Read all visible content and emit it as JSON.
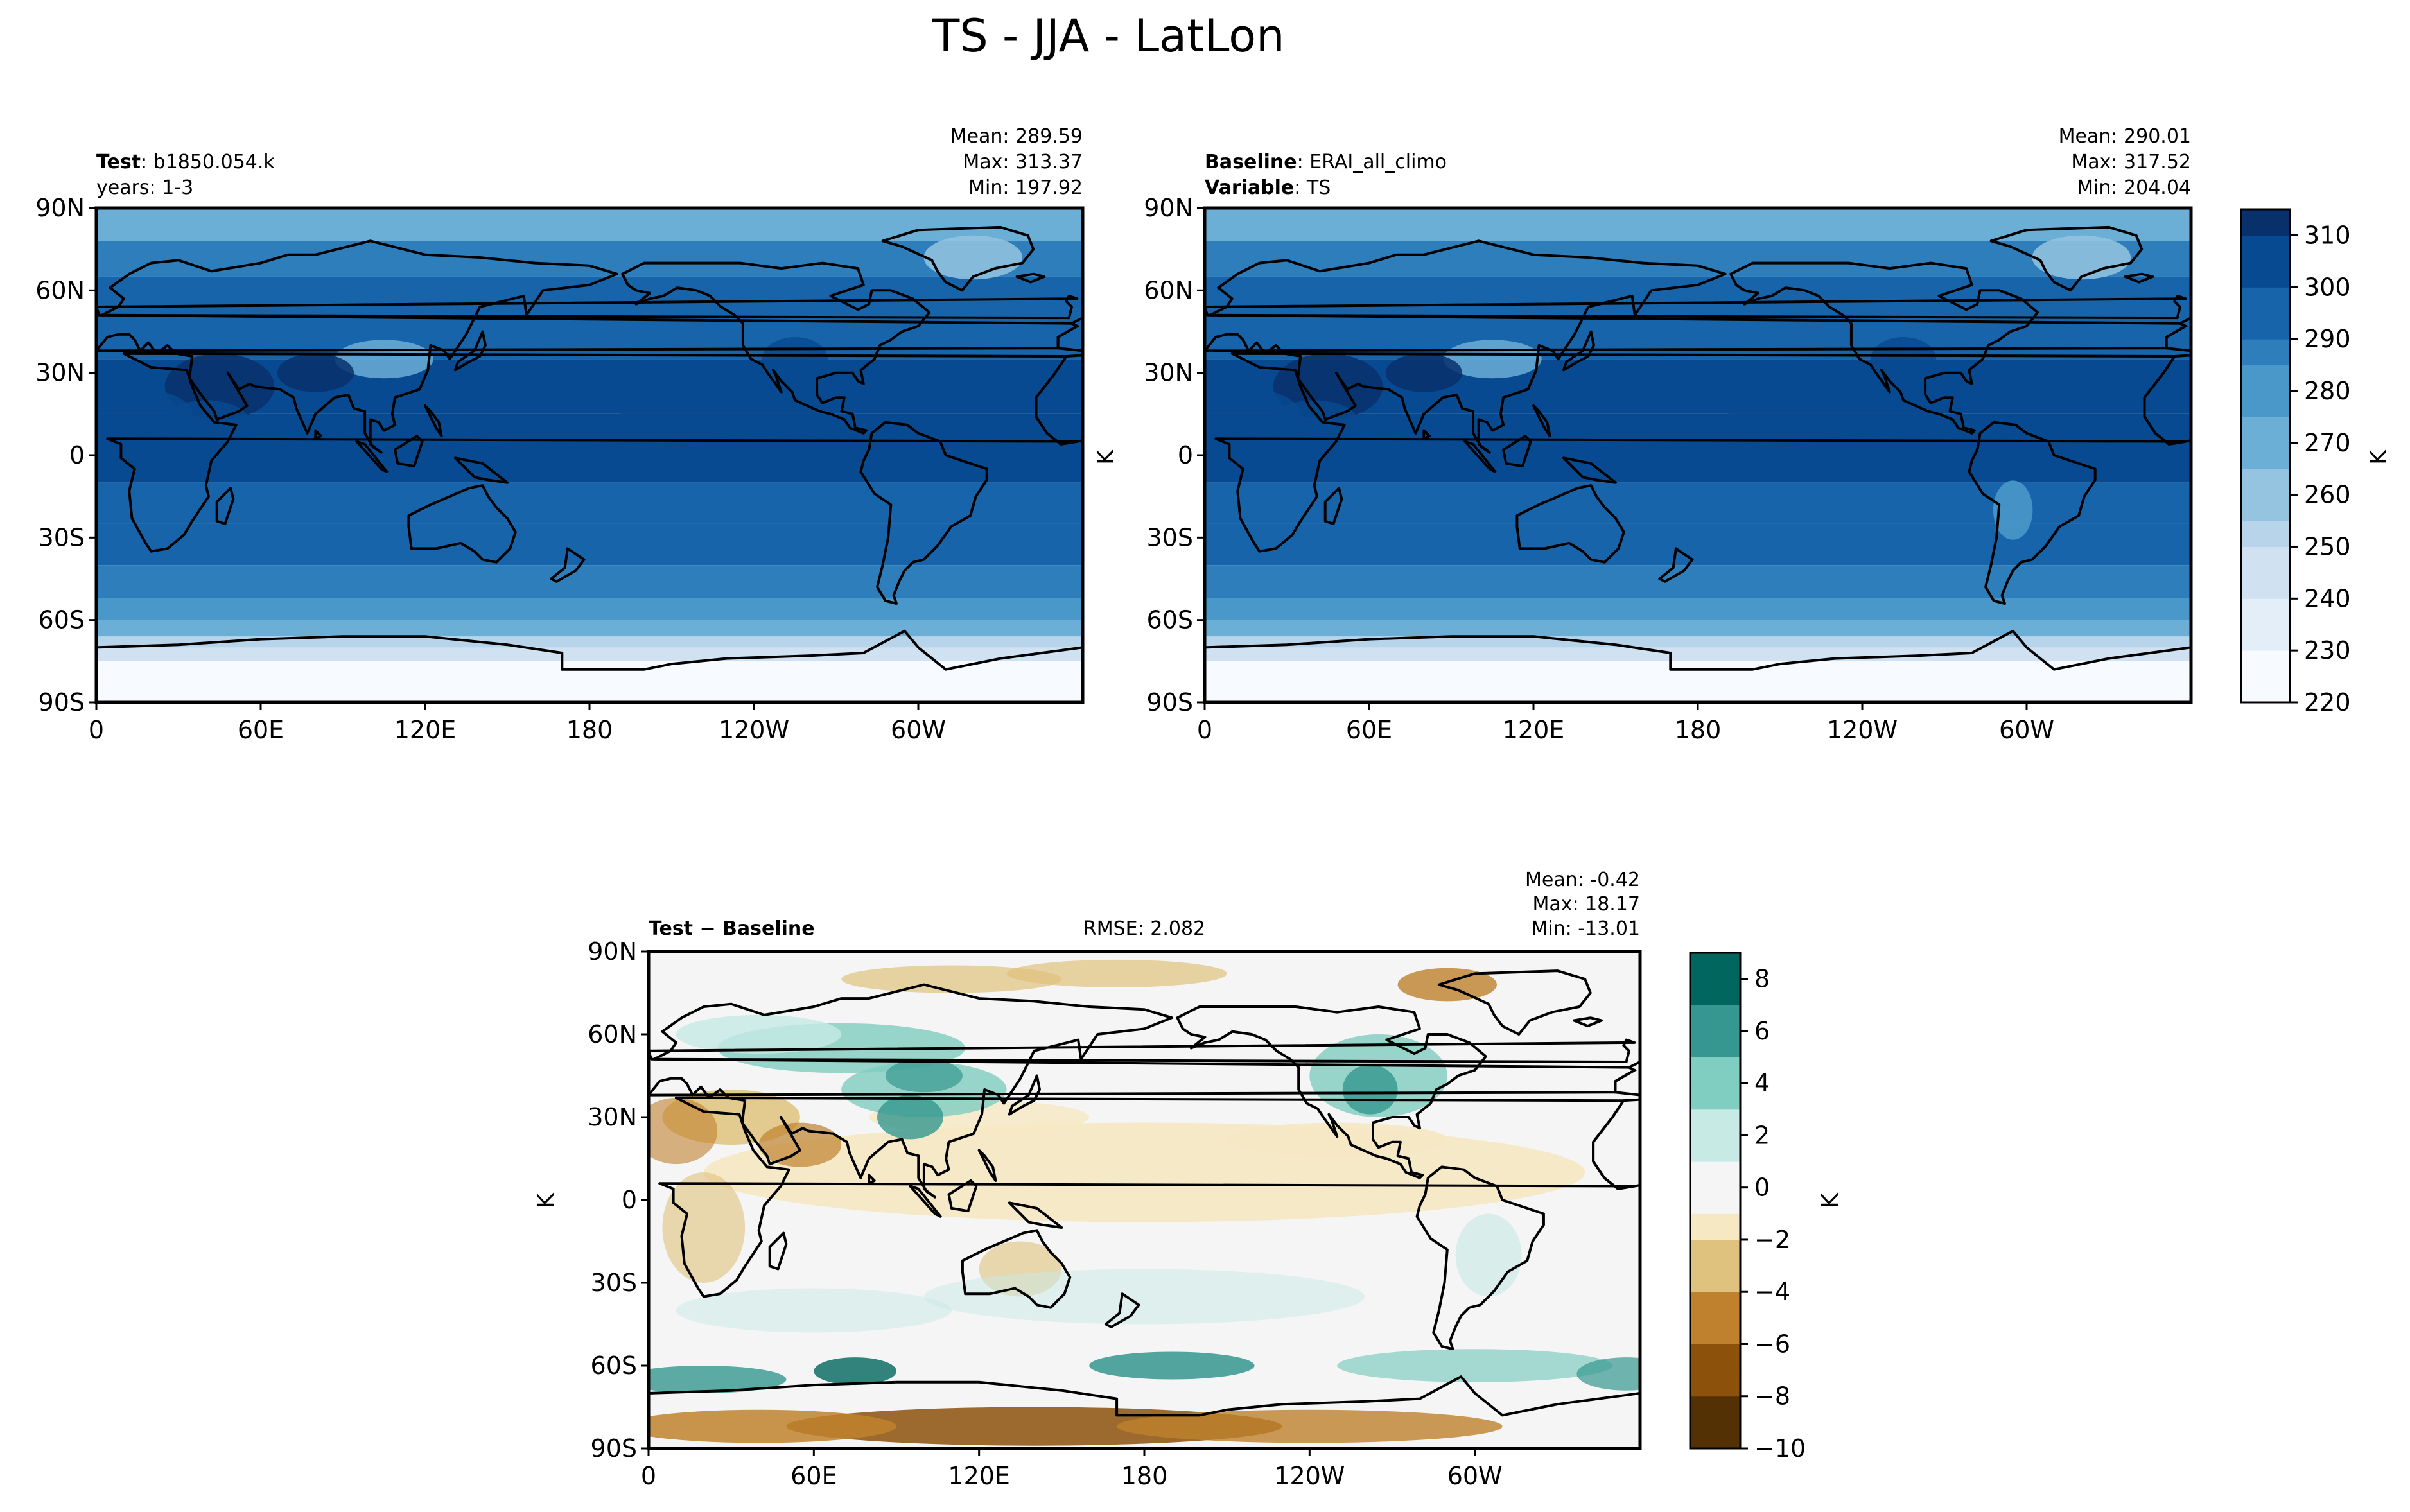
{
  "title": "TS - JJA - LatLon",
  "colors": {
    "seq": [
      "#f7fbff",
      "#e3eef8",
      "#d0e1f2",
      "#b7d4ea",
      "#94c4df",
      "#6baed6",
      "#4a98c9",
      "#2e7ebc",
      "#1764ab",
      "#084a91",
      "#08306b"
    ],
    "div_neg": [
      "#543005",
      "#8c510a",
      "#bf812d",
      "#dfc27d",
      "#f6e8c3"
    ],
    "div_pos": [
      "#c7eae5",
      "#80cdc1",
      "#35978f",
      "#01665e",
      "#003c30"
    ],
    "neutral": "#f5f5f5",
    "coast": "#000000"
  },
  "panels": {
    "test": {
      "left_label_bold": "Test",
      "left_label_value": ": b1850.054.k",
      "left_label_line2": "years: 1-3",
      "stats": [
        "Mean: 289.59",
        "Max: 313.37",
        "Min: 197.92"
      ]
    },
    "baseline": {
      "left_label_bold": "Baseline",
      "left_label_value": ": ERAI_all_climo",
      "left_label2_bold": "Variable",
      "left_label2_value": ": TS",
      "stats": [
        "Mean: 290.01",
        "Max: 317.52",
        "Min: 204.04"
      ]
    },
    "diff": {
      "left_label_bold": "Test − Baseline",
      "rmse": "RMSE: 2.082",
      "stats": [
        "Mean: -0.42",
        "Max: 18.17",
        "Min: -13.01"
      ]
    }
  },
  "axes": {
    "lat_ticks": [
      "90N",
      "60N",
      "30N",
      "0",
      "30S",
      "60S",
      "90S"
    ],
    "lon_ticks": [
      "0",
      "60E",
      "120E",
      "180",
      "120W",
      "60W"
    ],
    "unit_label": "K"
  },
  "colorbars": {
    "sequential": {
      "ticks": [
        "310",
        "300",
        "290",
        "280",
        "270",
        "260",
        "250",
        "240",
        "230",
        "220"
      ],
      "label": "K",
      "range": [
        220,
        315
      ]
    },
    "diverging": {
      "ticks": [
        "8",
        "6",
        "4",
        "2",
        "0",
        "−2",
        "−4",
        "−6",
        "−8",
        "−10"
      ],
      "label": "K",
      "range": [
        -10,
        9
      ]
    }
  },
  "chart_data": [
    {
      "type": "heatmap",
      "title": "TS - JJA - LatLon",
      "x_ticks": [
        "0",
        "60E",
        "120E",
        "180",
        "120W",
        "60W"
      ],
      "y_ticks": [
        "90N",
        "60N",
        "30N",
        "0",
        "30S",
        "60S",
        "90S"
      ],
      "colorbar_range": [
        220,
        315
      ],
      "colorbar_unit": "K",
      "stats": {
        "mean": 289.59,
        "max": 313.37,
        "min": 197.92
      }
    },
    {
      "type": "heatmap",
      "x_ticks": [
        "0",
        "60E",
        "120E",
        "180",
        "120W",
        "60W"
      ],
      "y_ticks": [
        "90N",
        "60N",
        "30N",
        "0",
        "30S",
        "60S",
        "90S"
      ],
      "colorbar_range": [
        220,
        315
      ],
      "colorbar_unit": "K",
      "stats": {
        "mean": 290.01,
        "max": 317.52,
        "min": 204.04
      }
    },
    {
      "type": "heatmap",
      "x_ticks": [
        "0",
        "60E",
        "120E",
        "180",
        "120W",
        "60W"
      ],
      "y_ticks": [
        "90N",
        "60N",
        "30N",
        "0",
        "30S",
        "60S",
        "90S"
      ],
      "colorbar_range": [
        -10,
        9
      ],
      "colorbar_unit": "K",
      "stats": {
        "mean": -0.42,
        "max": 18.17,
        "min": -13.01,
        "rmse": 2.082
      }
    }
  ]
}
